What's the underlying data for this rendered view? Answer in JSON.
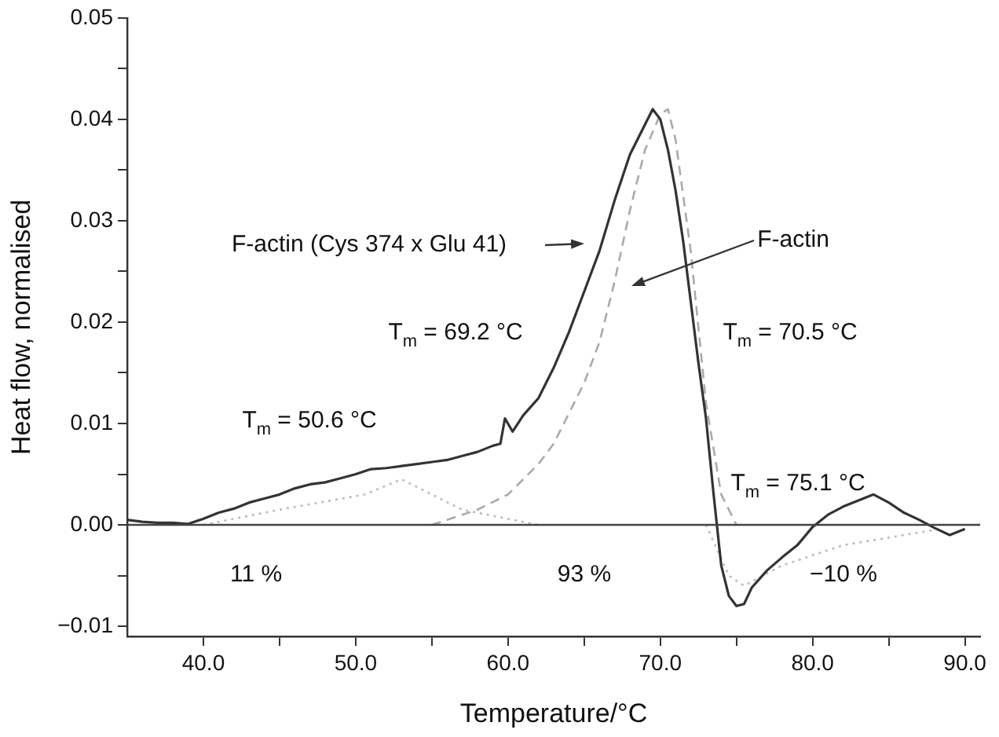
{
  "chart_data": {
    "type": "line",
    "xlabel": "Temperature/°C",
    "ylabel": "Heat flow, normalised",
    "xlim": [
      35,
      91
    ],
    "ylim": [
      -0.011,
      0.05
    ],
    "xticks": [
      {
        "value": 40,
        "label": "40.0"
      },
      {
        "value": 45,
        "label": null
      },
      {
        "value": 50,
        "label": "50.0"
      },
      {
        "value": 55,
        "label": null
      },
      {
        "value": 60,
        "label": "60.0"
      },
      {
        "value": 65,
        "label": null
      },
      {
        "value": 70,
        "label": "70.0"
      },
      {
        "value": 75,
        "label": null
      },
      {
        "value": 80,
        "label": "80.0"
      },
      {
        "value": 85,
        "label": null
      },
      {
        "value": 90,
        "label": "90.0"
      }
    ],
    "yticks": [
      {
        "value": -0.01,
        "label": "−0.01"
      },
      {
        "value": -0.005,
        "label": null
      },
      {
        "value": 0,
        "label": "0.00"
      },
      {
        "value": 0.005,
        "label": null
      },
      0.01,
      {
        "value": 0.015,
        "label": null
      },
      0.02,
      {
        "value": 0.025,
        "label": null
      },
      0.03,
      {
        "value": 0.035,
        "label": null
      },
      0.04,
      {
        "value": 0.045,
        "label": null
      },
      0.05
    ],
    "grid": false,
    "legend": false,
    "marker": "none",
    "series": [
      {
        "color": "#333333",
        "line_style": "solid",
        "x": [
          35,
          36,
          37,
          38,
          39,
          40,
          41,
          42,
          43,
          44,
          45,
          46,
          47,
          48,
          49,
          50,
          51,
          52,
          53,
          54,
          55,
          56,
          57,
          58,
          59,
          59.5,
          59.8,
          60.3,
          61,
          62,
          63,
          64,
          65,
          66,
          67,
          68,
          69,
          69.5,
          70,
          70.5,
          71,
          71.5,
          72,
          72.5,
          73,
          73.5,
          74,
          74.5,
          75,
          75.5,
          76,
          77,
          78,
          79,
          80,
          81,
          82,
          83,
          84,
          85,
          86,
          87,
          88,
          89,
          90
        ],
        "values": [
          0.0005,
          0.0003,
          0.0002,
          0.0002,
          0.0001,
          0.0006,
          0.0012,
          0.0016,
          0.0022,
          0.0026,
          0.003,
          0.0036,
          0.004,
          0.0042,
          0.0046,
          0.005,
          0.0055,
          0.0056,
          0.0058,
          0.006,
          0.0062,
          0.0064,
          0.0068,
          0.0072,
          0.0078,
          0.008,
          0.0105,
          0.0092,
          0.0108,
          0.0125,
          0.0155,
          0.019,
          0.023,
          0.027,
          0.032,
          0.0365,
          0.0395,
          0.041,
          0.04,
          0.037,
          0.033,
          0.028,
          0.022,
          0.016,
          0.0105,
          0.003,
          -0.004,
          -0.007,
          -0.008,
          -0.0078,
          -0.0062,
          -0.0045,
          -0.0032,
          -0.002,
          -0.0002,
          0.001,
          0.0018,
          0.0024,
          0.003,
          0.0022,
          0.0012,
          0.0005,
          -0.0003,
          -0.001,
          -0.0004
        ]
      },
      {
        "color": "#aaaaaa",
        "line_style": "dashed",
        "x": [
          55,
          58,
          60,
          62,
          63,
          64,
          65,
          66,
          67,
          68,
          69,
          70,
          70.5,
          71,
          72,
          73,
          74,
          75
        ],
        "values": [
          0,
          0.0015,
          0.003,
          0.006,
          0.008,
          0.011,
          0.014,
          0.018,
          0.024,
          0.031,
          0.037,
          0.0405,
          0.041,
          0.038,
          0.027,
          0.012,
          0.003,
          0
        ]
      },
      {
        "color": "#bbbbbb",
        "line_style": "dotted",
        "x": [
          40,
          45,
          50.6,
          53,
          57,
          62
        ],
        "values": [
          0,
          0.0015,
          0.003,
          0.0045,
          0.0015,
          0
        ]
      },
      {
        "color": "#bbbbbb",
        "line_style": "dotted",
        "x": [
          73,
          74.5,
          75.5,
          78,
          82,
          88
        ],
        "values": [
          0,
          -0.005,
          -0.006,
          -0.004,
          -0.002,
          -0.0005
        ]
      }
    ],
    "ref_lines": [
      {
        "axis": "y",
        "value": 0,
        "color": "#444444",
        "line_style": "solid"
      }
    ],
    "annotations": [
      "F-actin (Cys 374 x Glu 41)",
      "F-actin",
      "T$_{m}$ = 50.6 °C",
      "T$_{m}$ = 69.2 °C",
      "T$_{m}$ = 70.5 °C",
      "T$_{m}$ = 75.1 °C",
      "11 %",
      "93 %",
      "−10 %"
    ]
  }
}
